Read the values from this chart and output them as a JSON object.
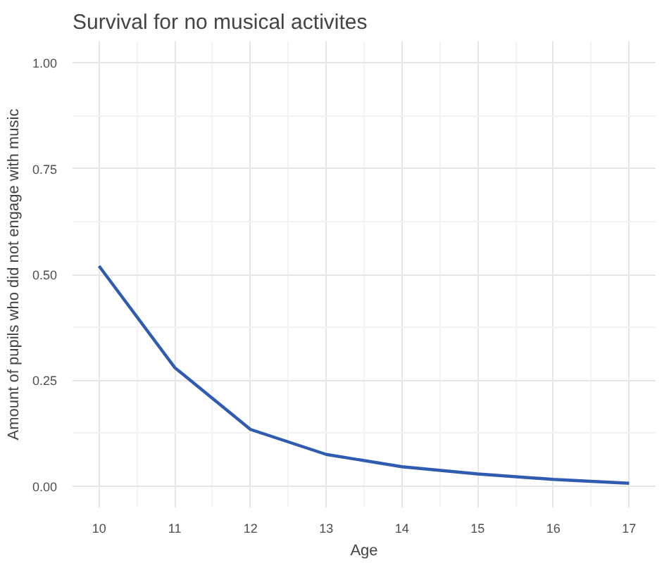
{
  "chart_data": {
    "type": "line",
    "title": "Survival for no musical activites",
    "xlabel": "Age",
    "ylabel": "Amount of pupils who did not engage with music",
    "x": [
      10,
      11,
      12,
      13,
      14,
      15,
      16,
      17
    ],
    "series": [
      {
        "color": "#2f5bb0",
        "values": [
          0.52,
          0.28,
          0.134,
          0.075,
          0.046,
          0.029,
          0.016,
          0.007
        ]
      }
    ],
    "xlim": [
      9.65,
      17.35
    ],
    "ylim": [
      -0.05,
      1.05
    ],
    "xticks": [
      10,
      11,
      12,
      13,
      14,
      15,
      16,
      17
    ],
    "yticks": [
      {
        "value": 0,
        "label": "0.00"
      },
      {
        "value": 0.25,
        "label": "0.25"
      },
      {
        "value": 0.5,
        "label": "0.50"
      },
      {
        "value": 0.75,
        "label": "0.75"
      },
      {
        "value": 1,
        "label": "1.00"
      }
    ],
    "grid": true
  }
}
